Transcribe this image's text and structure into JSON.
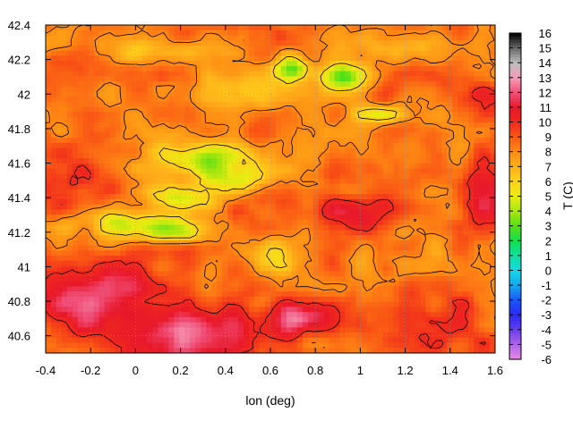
{
  "chart_data": {
    "type": "heatmap",
    "title": "",
    "xlabel": "lon (deg)",
    "ylabel": "",
    "colorbar_label": "T (C)",
    "xlim": [
      -0.4,
      1.6
    ],
    "ylim": [
      40.5,
      42.4
    ],
    "x_ticks": [
      -0.4,
      -0.2,
      0,
      0.2,
      0.4,
      0.6,
      0.8,
      1,
      1.2,
      1.4,
      1.6
    ],
    "x_tick_labels": [
      "-0.4",
      "-0.2",
      "0",
      "0.2",
      "0.4",
      "0.6",
      "0.8",
      "1",
      "1.2",
      "1.4",
      "1.6"
    ],
    "y_ticks": [
      40.6,
      40.8,
      41,
      41.2,
      41.4,
      41.6,
      41.8,
      42,
      42.2,
      42.4
    ],
    "y_tick_labels": [
      "40.6",
      "40.8",
      "41",
      "41.2",
      "41.4",
      "41.6",
      "41.8",
      "42",
      "42.2",
      "42.4"
    ],
    "colorbar_range": [
      -6,
      16
    ],
    "colorbar_ticks": [
      16,
      15,
      14,
      13,
      12,
      11,
      10,
      9,
      8,
      7,
      6,
      5,
      4,
      3,
      2,
      1,
      0,
      -1,
      -2,
      -3,
      -4,
      -5,
      -6
    ],
    "colorbar_tick_labels": [
      "16",
      "15",
      "14",
      "13",
      "12",
      "11",
      "10",
      "9",
      "8",
      "7",
      "6",
      "5",
      "4",
      "3",
      "2",
      "1",
      "0",
      "-1",
      "-2",
      "-3",
      "-4",
      "-5",
      "-6"
    ],
    "colormap": [
      {
        "value": -6,
        "color": "#e58ce5"
      },
      {
        "value": -5,
        "color": "#b066e8"
      },
      {
        "value": -4,
        "color": "#6a3ef0"
      },
      {
        "value": -3,
        "color": "#2a2af5"
      },
      {
        "value": -2,
        "color": "#1a55f5"
      },
      {
        "value": -1,
        "color": "#15a6f0"
      },
      {
        "value": 0,
        "color": "#15d8e8"
      },
      {
        "value": 1,
        "color": "#10e0a0"
      },
      {
        "value": 2,
        "color": "#10e050"
      },
      {
        "value": 3,
        "color": "#55e015"
      },
      {
        "value": 4,
        "color": "#a8e610"
      },
      {
        "value": 5,
        "color": "#e8ec12"
      },
      {
        "value": 6,
        "color": "#ffd21a"
      },
      {
        "value": 7,
        "color": "#ffb01a"
      },
      {
        "value": 8,
        "color": "#ff8c14"
      },
      {
        "value": 9,
        "color": "#fa5a14"
      },
      {
        "value": 10,
        "color": "#f0281e"
      },
      {
        "value": 11,
        "color": "#e8182a"
      },
      {
        "value": 12,
        "color": "#f04e78"
      },
      {
        "value": 13,
        "color": "#f59cb8"
      },
      {
        "value": 14,
        "color": "#bdbdbd"
      },
      {
        "value": 15,
        "color": "#6a6a6a"
      },
      {
        "value": 16,
        "color": "#000000"
      }
    ],
    "approx_field": {
      "base_temperature": 8.5,
      "features": [
        {
          "lon": 0.32,
          "lat": 41.62,
          "sx": 0.16,
          "sy": 0.07,
          "delta": -4.5
        },
        {
          "lon": 0.45,
          "lat": 41.5,
          "sx": 0.1,
          "sy": 0.05,
          "delta": -3.5
        },
        {
          "lon": 0.2,
          "lat": 41.4,
          "sx": 0.12,
          "sy": 0.05,
          "delta": -3.5
        },
        {
          "lon": -0.05,
          "lat": 41.25,
          "sx": 0.16,
          "sy": 0.06,
          "delta": -3.5
        },
        {
          "lon": 0.2,
          "lat": 41.2,
          "sx": 0.12,
          "sy": 0.05,
          "delta": -3.0
        },
        {
          "lon": 0.6,
          "lat": 41.05,
          "sx": 0.08,
          "sy": 0.08,
          "delta": -3.0
        },
        {
          "lon": 0.7,
          "lat": 42.15,
          "sx": 0.05,
          "sy": 0.05,
          "delta": -5.0
        },
        {
          "lon": 0.93,
          "lat": 42.1,
          "sx": 0.07,
          "sy": 0.05,
          "delta": -5.0
        },
        {
          "lon": 1.1,
          "lat": 41.88,
          "sx": 0.1,
          "sy": 0.03,
          "delta": -3.0
        },
        {
          "lon": 0.1,
          "lat": 42.25,
          "sx": 0.25,
          "sy": 0.05,
          "delta": -2.0
        },
        {
          "lon": 1.2,
          "lat": 42.3,
          "sx": 0.18,
          "sy": 0.06,
          "delta": -2.0
        },
        {
          "lon": -0.2,
          "lat": 40.85,
          "sx": 0.25,
          "sy": 0.15,
          "delta": 2.8
        },
        {
          "lon": 0.2,
          "lat": 40.6,
          "sx": 0.25,
          "sy": 0.12,
          "delta": 3.5
        },
        {
          "lon": -0.3,
          "lat": 41.5,
          "sx": 0.12,
          "sy": 0.12,
          "delta": 2.0
        },
        {
          "lon": 0.95,
          "lat": 41.3,
          "sx": 0.15,
          "sy": 0.08,
          "delta": 2.0
        },
        {
          "lon": 1.55,
          "lat": 41.45,
          "sx": 0.08,
          "sy": 0.12,
          "delta": 3.5
        },
        {
          "lon": 1.55,
          "lat": 42.0,
          "sx": 0.05,
          "sy": 0.05,
          "delta": 2.0
        },
        {
          "lon": 1.3,
          "lat": 40.7,
          "sx": 0.25,
          "sy": 0.15,
          "delta": 1.3
        },
        {
          "lon": 0.75,
          "lat": 40.7,
          "sx": 0.1,
          "sy": 0.07,
          "delta": 4.0
        },
        {
          "lon": 1.2,
          "lat": 41.0,
          "sx": 0.15,
          "sy": 0.12,
          "delta": -1.2
        },
        {
          "lon": 0.5,
          "lat": 42.0,
          "sx": 0.2,
          "sy": 0.08,
          "delta": -1.3
        },
        {
          "lon": 0.8,
          "lat": 41.7,
          "sx": 0.1,
          "sy": 0.08,
          "delta": -0.8
        }
      ],
      "contour_levels": [
        6,
        8,
        10
      ]
    }
  }
}
